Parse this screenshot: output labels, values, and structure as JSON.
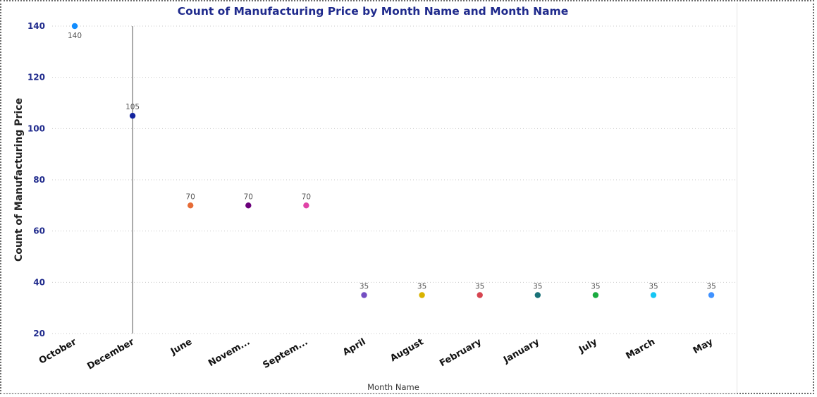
{
  "chart_data": {
    "type": "scatter",
    "title": "Count of Manufacturing Price by Month Name and Month Name",
    "xlabel": "Month Name",
    "ylabel": "Count of Manufacturing Price",
    "ylim": [
      20,
      140
    ],
    "yticks": [
      20,
      40,
      60,
      80,
      100,
      120,
      140
    ],
    "grid": true,
    "legend": "none",
    "categories": [
      "October",
      "December",
      "June",
      "Novem...",
      "Septem...",
      "April",
      "August",
      "February",
      "January",
      "July",
      "March",
      "May"
    ],
    "values": [
      140,
      105,
      70,
      70,
      70,
      35,
      35,
      35,
      35,
      35,
      35,
      35
    ],
    "data_labels": [
      "140",
      "105",
      "70",
      "70",
      "70",
      "35",
      "35",
      "35",
      "35",
      "35",
      "35",
      "35"
    ],
    "colors": [
      "#118dff",
      "#12239e",
      "#e66c37",
      "#6b007b",
      "#e044a7",
      "#744ec2",
      "#d9b300",
      "#d64550",
      "#197278",
      "#1aab40",
      "#15c6f4",
      "#4092ff"
    ],
    "marker_line_category": "December",
    "text_color": "#1f2a8c"
  }
}
